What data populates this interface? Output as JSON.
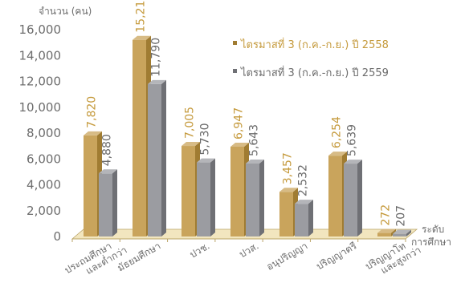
{
  "chart_data": {
    "type": "bar",
    "ylabel": "จำนวน (คน)",
    "xlabel": "ระดับการศึกษา",
    "ylim": [
      0,
      16000
    ],
    "yticks": [
      "0",
      "2,000",
      "4,000",
      "6,000",
      "8,000",
      "10,000",
      "12,000",
      "14,000",
      "16,000"
    ],
    "categories": [
      "ประถมศึกษาและต่ำกว่า",
      "มัธยมศึกษา",
      "ปวช.",
      "ปวส.",
      "อนุปริญญา",
      "ปริญญาตรี",
      "ปริญญาโทและสูงกว่า"
    ],
    "series": [
      {
        "name": "ไตรมาสที่ 3 (ก.ค.-ก.ย.) ปี 2558",
        "color": "#c9a45c",
        "values": [
          7820,
          15213,
          7005,
          6947,
          3457,
          6254,
          272
        ],
        "labels": [
          "7,820",
          "15,213",
          "7,005",
          "6,947",
          "3,457",
          "6,254",
          "272"
        ]
      },
      {
        "name": "ไตรมาสที่ 3 (ก.ค.-ก.ย.) ปี 2559",
        "color": "#9b9ca1",
        "values": [
          4880,
          11790,
          5730,
          5643,
          2532,
          5639,
          207
        ],
        "labels": [
          "4,880",
          "11,790",
          "5,730",
          "5,643",
          "2,532",
          "5,639",
          "207"
        ]
      }
    ],
    "legend_position": "top-right",
    "grid": false
  },
  "colors": {
    "series1": "#c9a45c",
    "series1_dark": "#a07c32",
    "series1_label": "#c59a3c",
    "series2": "#9b9ca1",
    "series2_dark": "#6f7075",
    "series2_label": "#6b6b6b",
    "floor": "#f2e6bf",
    "axis": "#bba56a",
    "text": "#6d6d6d"
  }
}
